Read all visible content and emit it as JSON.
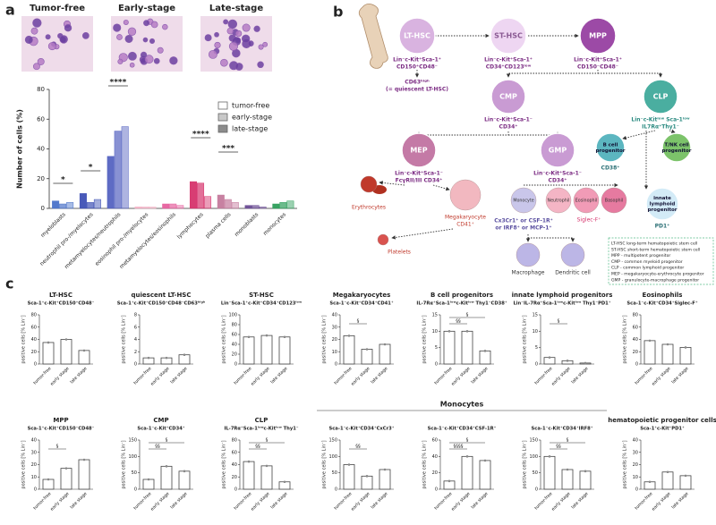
{
  "panel_labels": [
    "a",
    "b",
    "c"
  ],
  "images": [
    "Tumor-free",
    "Early-stage",
    "Late-stage"
  ],
  "monocytes_header": "Monocytes",
  "chart_data": [
    {
      "type": "bar",
      "ylabel": "Number of cells (%)",
      "categories": [
        "myeloblasts",
        "neutrophil pro-/myelocytes",
        "metamyelocytes/neutrophils",
        "eosinophil pro-/myelocytes",
        "metamyelocytes/eosinophils",
        "lymphocytes",
        "plasma cells",
        "monoblasts",
        "monocytes"
      ],
      "category_colors": [
        "#4a72c9",
        "#3f51b5",
        "#5563c1",
        "#f2b3c6",
        "#e6619e",
        "#d6336c",
        "#c47a9c",
        "#6a4c93",
        "#2e9e5b"
      ],
      "series": [
        {
          "name": "tumor-free",
          "color": "#ffffff",
          "values": [
            5,
            10,
            35,
            1,
            3,
            18,
            9,
            2,
            3
          ]
        },
        {
          "name": "early-stage",
          "color": "#c8c8c8",
          "values": [
            3,
            4,
            52,
            1,
            3,
            17,
            6,
            2,
            4
          ]
        },
        {
          "name": "late-stage",
          "color": "#8c8c8c",
          "values": [
            4,
            6,
            55,
            1,
            2,
            8,
            4,
            1,
            5
          ]
        }
      ],
      "ylim": [
        0,
        80
      ],
      "yticks": [
        0,
        20,
        40,
        60,
        80
      ],
      "annotations": [
        "*",
        "*",
        "****",
        "****",
        "***"
      ]
    },
    {
      "type": "bar",
      "title": "LT-HSC",
      "subtitle": "Sca-1⁺c-Kit⁺CD150⁺CD48⁻",
      "ylabel": "positive cells [% Lin⁻]",
      "categories": [
        "tumor-free",
        "early stage",
        "late stage"
      ],
      "values": [
        35,
        40,
        22
      ],
      "ylim": [
        0,
        80
      ],
      "yticks": [
        0,
        20,
        40,
        60,
        80
      ]
    },
    {
      "type": "bar",
      "title": "quiescent LT-HSC",
      "subtitle": "Sca-1⁺c-Kit⁺CD150⁺CD48⁻CD63ʰⁱᵍʰ",
      "ylabel": "positive cells [% Lin⁻]",
      "categories": [
        "tumor-free",
        "early stage",
        "late stage"
      ],
      "values": [
        1,
        1,
        1.5
      ],
      "ylim": [
        0,
        8
      ],
      "yticks": [
        0,
        2,
        4,
        6,
        8
      ]
    },
    {
      "type": "bar",
      "title": "ST-HSC",
      "subtitle": "Lin⁻Sca-1⁺c-Kit⁺CD34⁺CD123ˡᵒʷ",
      "ylabel": "positive cells [% Lin⁻]",
      "categories": [
        "tumor-free",
        "early stage",
        "late stage"
      ],
      "values": [
        55,
        58,
        55
      ],
      "ylim": [
        0,
        100
      ],
      "yticks": [
        0,
        20,
        40,
        60,
        80,
        100
      ]
    },
    {
      "type": "bar",
      "title": "Megakaryocytes",
      "subtitle": "Sca-1⁻c-Kit⁺CD34⁺CD41⁺",
      "ylabel": "positive cells [% Lin⁻]",
      "categories": [
        "tumor-free",
        "early stage",
        "late stage"
      ],
      "values": [
        23,
        12,
        16
      ],
      "ylim": [
        0,
        40
      ],
      "yticks": [
        0,
        10,
        20,
        30,
        40
      ],
      "significance": [
        "§"
      ]
    },
    {
      "type": "bar",
      "title": "B cell progenitors",
      "subtitle": "IL-7Rα⁺Sca-1ˡᵒʷc-Kitˡᵒʷ Thy1⁻CD38⁺",
      "ylabel": "positive cells [% Lin⁻]",
      "categories": [
        "tumor-free",
        "early stage",
        "late stage"
      ],
      "values": [
        10,
        10,
        4
      ],
      "ylim": [
        0,
        15
      ],
      "yticks": [
        0,
        5,
        10,
        15
      ],
      "significance": [
        "§§",
        "§"
      ]
    },
    {
      "type": "bar",
      "title": "innate lymphoid progenitors",
      "subtitle": "Lin⁻IL-7Rα⁺Sca-1ˡᵒʷc-Kitˡᵒʷ Thy1⁻PD1⁺",
      "ylabel": "positive cells [% Lin⁻]",
      "categories": [
        "tumor-free",
        "early stage",
        "late stage"
      ],
      "values": [
        2,
        1,
        0.3
      ],
      "ylim": [
        0,
        15
      ],
      "yticks": [
        0,
        5,
        10,
        15
      ],
      "significance": [
        "§"
      ]
    },
    {
      "type": "bar",
      "title": "Eosinophils",
      "subtitle": "Sca-1⁻c-Kit⁺CD34⁺Siglec-F⁺",
      "ylabel": "positive cells [% Lin⁻]",
      "categories": [
        "tumor-free",
        "early stage",
        "late stage"
      ],
      "values": [
        38,
        32,
        27
      ],
      "ylim": [
        0,
        80
      ],
      "yticks": [
        0,
        20,
        40,
        60,
        80
      ]
    },
    {
      "type": "bar",
      "title": "MPP",
      "subtitle": "Sca-1⁺c-Kit⁺CD150⁻CD48⁻",
      "ylabel": "positive cells [% Lin⁻]",
      "categories": [
        "tumor-free",
        "early stage",
        "late stage"
      ],
      "values": [
        8,
        17,
        24
      ],
      "ylim": [
        0,
        40
      ],
      "yticks": [
        0,
        10,
        20,
        30,
        40
      ],
      "significance": [
        "§"
      ]
    },
    {
      "type": "bar",
      "title": "CMP",
      "subtitle": "Sca-1⁻c-Kit⁺CD34⁺",
      "ylabel": "positive cells [% Lin⁻]",
      "categories": [
        "tumor-free",
        "early stage",
        "late stage"
      ],
      "values": [
        30,
        70,
        55
      ],
      "ylim": [
        0,
        150
      ],
      "yticks": [
        0,
        50,
        100,
        150
      ],
      "significance": [
        "§§",
        "§"
      ]
    },
    {
      "type": "bar",
      "title": "CLP",
      "subtitle": "IL-7Rα⁺Sca-1ˡᵒʷc-Kitˡᵒʷ Thy1⁻",
      "ylabel": "positive cells [% Lin⁻]",
      "categories": [
        "tumor-free",
        "early stage",
        "late stage"
      ],
      "values": [
        45,
        38,
        12
      ],
      "ylim": [
        0,
        80
      ],
      "yticks": [
        0,
        20,
        40,
        60,
        80
      ],
      "significance": [
        "§§",
        "§"
      ]
    },
    {
      "type": "bar",
      "subtitle": "Sca-1⁻c-Kit⁺CD34⁺CxCr3⁺",
      "ylabel": "positive cells [% Lin⁻]",
      "categories": [
        "tumor-free",
        "early stage",
        "late stage"
      ],
      "values": [
        75,
        40,
        60
      ],
      "ylim": [
        0,
        150
      ],
      "yticks": [
        0,
        50,
        100,
        150
      ],
      "significance": [
        "§§"
      ]
    },
    {
      "type": "bar",
      "subtitle": "Sca-1⁻c-Kit⁺CD34⁺CSF-1R⁺",
      "ylabel": "positive cells [% Lin⁻]",
      "categories": [
        "tumor-free",
        "early stage",
        "late stage"
      ],
      "values": [
        10,
        40,
        35
      ],
      "ylim": [
        0,
        60
      ],
      "yticks": [
        0,
        20,
        40,
        60
      ],
      "significance": [
        "§§§§",
        "§"
      ]
    },
    {
      "type": "bar",
      "subtitle": "Sca-1⁻c-Kit⁺CD34⁺IRF8⁺",
      "ylabel": "positive cells [% Lin⁻]",
      "categories": [
        "tumor-free",
        "early stage",
        "late stage"
      ],
      "values": [
        100,
        60,
        55
      ],
      "ylim": [
        0,
        150
      ],
      "yticks": [
        0,
        50,
        100,
        150
      ],
      "significance": [
        "§§",
        "§"
      ]
    },
    {
      "type": "bar",
      "title": "hematopoietic progenitor cells",
      "subtitle": "Sca-1⁺c-Kit⁺PD1⁺",
      "ylabel": "positive cells [% Lin⁻]",
      "categories": [
        "tumor-free",
        "early stage",
        "late stage"
      ],
      "values": [
        6,
        14,
        11
      ],
      "ylim": [
        0,
        40
      ],
      "yticks": [
        0,
        10,
        20,
        30,
        40
      ]
    }
  ],
  "diagram": {
    "nodes": [
      {
        "label": [
          "LT-HSC"
        ],
        "markers": [
          "Lin⁻c-Kit⁺Sca-1⁺",
          "CD150⁺CD48⁻"
        ]
      },
      {
        "label": [
          "ST-HSC"
        ],
        "markers": [
          "Lin⁻c-Kit⁺Sca-1⁺",
          "CD34⁺CD123ˡᵒʷ"
        ]
      },
      {
        "label": [
          "MPP"
        ],
        "markers": [
          "Lin⁻c-Kit⁺Sca-1⁺",
          "CD150⁻CD48⁻"
        ]
      },
      {
        "label": [
          "CMP"
        ],
        "markers": [
          "Lin⁻c-Kit⁺Sca-1⁻",
          "CD34⁺"
        ]
      },
      {
        "label": [
          "CLP"
        ],
        "markers": [
          "Lin⁻c-Kitˡᵒʷ Sca-1ˡᵒʷ",
          "IL7Rα⁺Thy1⁻"
        ]
      },
      {
        "label": [
          "MEP"
        ],
        "markers": [
          "Lin⁻c-Kit⁺Sca-1⁻",
          "FcγRII/III CD34⁺"
        ]
      },
      {
        "label": [
          "GMP"
        ],
        "markers": [
          "Lin⁻c-Kit⁺Sca-1⁻",
          "CD34⁺"
        ]
      },
      {
        "label": [
          "B cell",
          "progenitor"
        ],
        "markers": [
          "CD38⁺"
        ]
      },
      {
        "label": [
          "T/NK cell",
          "progenitor"
        ],
        "markers": []
      },
      {
        "label": [
          "innate",
          "lymphoid",
          "progenitor"
        ],
        "markers": [
          "PD1⁺"
        ]
      }
    ],
    "notes": [
      "CD63ʰⁱᵍʰ",
      "(= quiescent LT-HSC)"
    ],
    "cells": [
      [
        "Erythrocytes"
      ],
      [
        "Megakaryocyte",
        "CD41⁺"
      ],
      [
        "Platelets"
      ],
      [
        "Monocyte"
      ],
      [
        "Neutrophil"
      ],
      [
        "Eosinophil"
      ],
      [
        "Basophil"
      ],
      [
        "Macrophage"
      ],
      [
        "Dendritic cell"
      ]
    ],
    "monocyte_markers": [
      "Cx3Cr1⁺ or CSF-1R⁺",
      "or IRF8⁺ or MCP-1⁺"
    ],
    "eosinophil_marker": "Siglec-F⁺",
    "legend": [
      "LT-HSC long-term hematopoietic stem cell",
      "ST-HSC short-term hematopoietic stem cell",
      "MPP - multipotent progenitor",
      "CMP - common myeloid progenitor",
      "CLP - common lymphoid progenitor",
      "MEP - megakaryocyte-erythrocyte progenitor",
      "GMP - granulocyte-macrophage progenitor"
    ]
  }
}
